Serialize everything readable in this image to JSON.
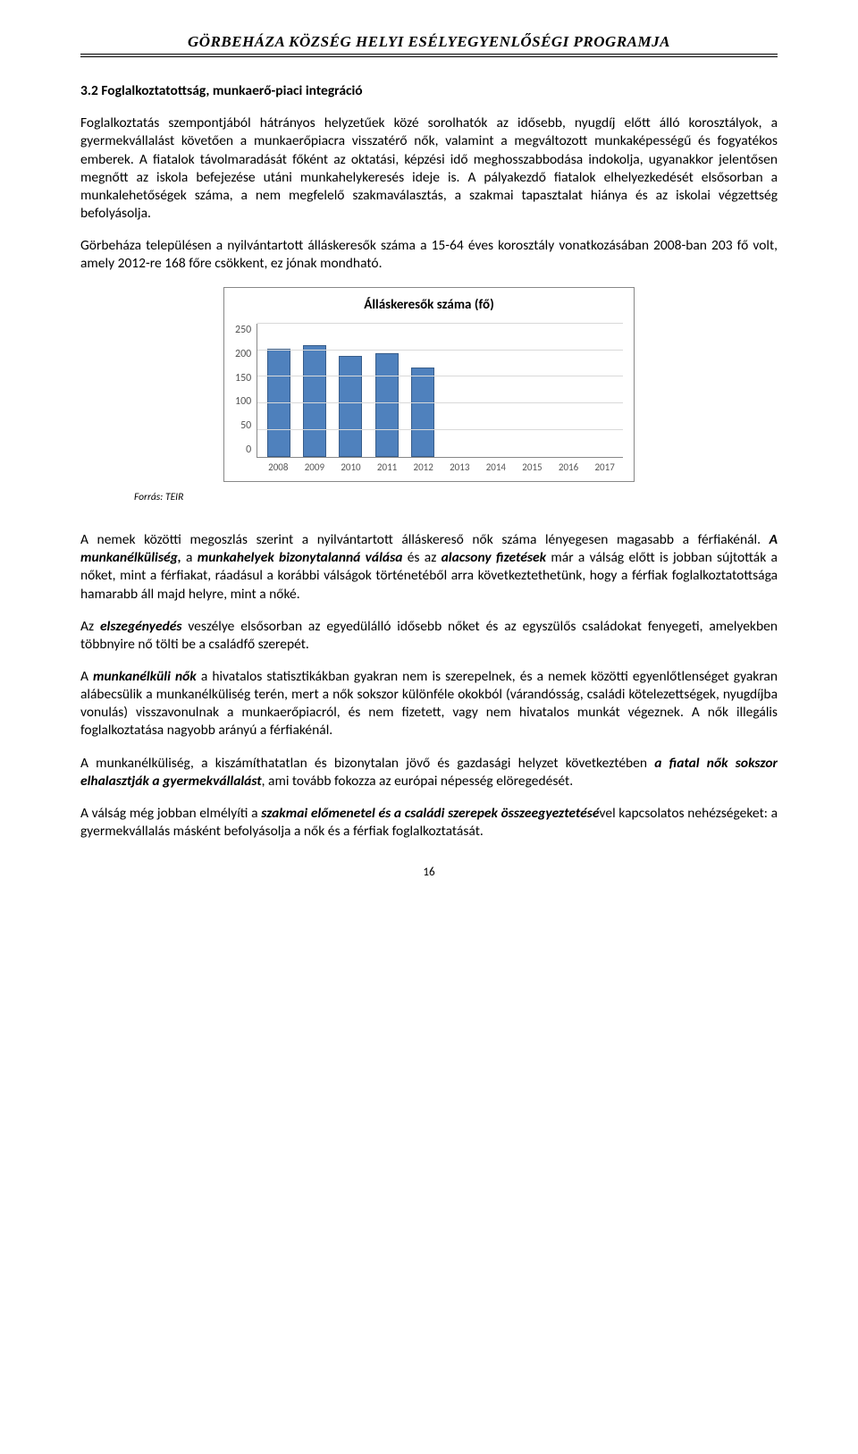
{
  "header": "GÖRBEHÁZA KÖZSÉG HELYI ESÉLYEGYENLŐSÉGI PROGRAMJA",
  "section_title": "3.2 Foglalkoztatottság, munkaerő-piaci integráció",
  "para1": "Foglalkoztatás szempontjából hátrányos helyzetűek közé sorolhatók az idősebb, nyugdíj előtt álló korosztályok, a gyermekvállalást követően a munkaerőpiacra visszatérő nők, valamint a megváltozott munkaképességű és fogyatékos emberek. A fiatalok távolmaradását főként az oktatási, képzési idő meghosszabbodása indokolja, ugyanakkor jelentősen megnőtt az iskola befejezése utáni munkahelykeresés ideje is. A pályakezdő fiatalok elhelyezkedését elsősorban a munkalehetőségek száma, a nem megfelelő szakmaválasztás, a szakmai tapasztalat hiánya és az iskolai végzettség befolyásolja.",
  "para2": "Görbeháza településen a nyilvántartott álláskeresők száma a 15-64 éves korosztály vonatkozásában 2008-ban 203 fő volt, amely 2012-re 168 főre csökkent, ez jónak mondható.",
  "chart": {
    "title": "Álláskeresők száma (fő)",
    "type": "bar",
    "ymax": 250,
    "ytick_step": 50,
    "yticks": [
      "250",
      "200",
      "150",
      "100",
      "50",
      "0"
    ],
    "categories": [
      "2008",
      "2009",
      "2010",
      "2011",
      "2012",
      "2013",
      "2014",
      "2015",
      "2016",
      "2017"
    ],
    "values": [
      203,
      210,
      190,
      195,
      168,
      0,
      0,
      0,
      0,
      0
    ],
    "bar_color": "#4f81bd",
    "bar_border": "#385d8a",
    "grid_color": "#d9d9d9",
    "background": "#ffffff"
  },
  "source": "Forrás: TEIR",
  "para3a": "A nemek közötti megoszlás szerint a nyilvántartott álláskereső nők száma lényegesen magasabb a férfiakénál. ",
  "para3b": "A munkanélküliség,",
  "para3c": " a ",
  "para3d": "munkahelyek bizonytalanná válása",
  "para3e": " és az ",
  "para3f": "alacsony fizetések",
  "para3g": " már a válság előtt is jobban sújtották a nőket, mint a férfiakat, ráadásul a korábbi válságok történetéből arra következtethetünk, hogy a férfiak foglalkoztatottsága hamarabb áll majd helyre, mint a nőké.",
  "para4a": "Az ",
  "para4b": "elszegényedés",
  "para4c": " veszélye elsősorban az egyedülálló idősebb nőket és az egyszülős családokat fenyegeti, amelyekben többnyire nő tölti be a családfő szerepét.",
  "para5a": "A ",
  "para5b": "munkanélküli nők",
  "para5c": " a hivatalos statisztikákban gyakran nem is szerepelnek, és a nemek közötti egyenlőtlenséget gyakran alábecsülik a munkanélküliség terén, mert a nők sokszor különféle okokból (várandósság, családi kötelezettségek, nyugdíjba vonulás) visszavonulnak a munkaerőpiacról, és nem fizetett, vagy nem hivatalos munkát végeznek. A nők illegális foglalkoztatása nagyobb arányú a férfiakénál.",
  "para6a": "A munkanélküliség, a kiszámíthatatlan és bizonytalan jövő és gazdasági helyzet következtében ",
  "para6b": "a fiatal nők sokszor elhalasztják a gyermekvállalást",
  "para6c": ", ami tovább fokozza az európai népesség elöregedését.",
  "para7a": "A válság még jobban elmélyíti a ",
  "para7b": "szakmai előmenetel és a családi szerepek összeegyeztetésé",
  "para7c": "vel kapcsolatos nehézségeket: a gyermekvállalás másként befolyásolja a nők és a férfiak foglalkoztatását.",
  "page_number": "16"
}
